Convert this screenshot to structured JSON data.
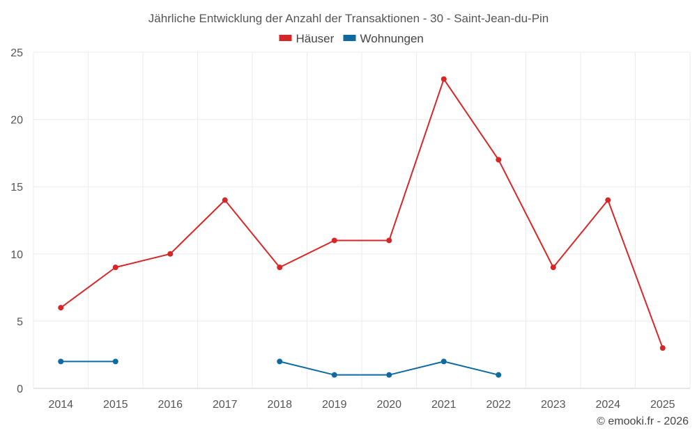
{
  "chart_data": {
    "type": "line",
    "title": "Jährliche Entwicklung der Anzahl der Transaktionen - 30 - Saint-Jean-du-Pin",
    "categories": [
      "2014",
      "2015",
      "2016",
      "2017",
      "2018",
      "2019",
      "2020",
      "2021",
      "2022",
      "2023",
      "2024",
      "2025"
    ],
    "series": [
      {
        "name": "Häuser",
        "color": "#d62728",
        "values": [
          6,
          9,
          10,
          14,
          9,
          11,
          11,
          23,
          17,
          9,
          14,
          3
        ]
      },
      {
        "name": "Wohnungen",
        "color": "#0e6aa0",
        "values": [
          2,
          2,
          null,
          null,
          2,
          1,
          1,
          2,
          1,
          null,
          null,
          null
        ]
      }
    ],
    "ylim": [
      0,
      25
    ],
    "yticks": [
      0,
      5,
      10,
      15,
      20,
      25
    ],
    "grid": true,
    "legend": "top-center"
  },
  "credit": "© emooki.fr - 2026"
}
